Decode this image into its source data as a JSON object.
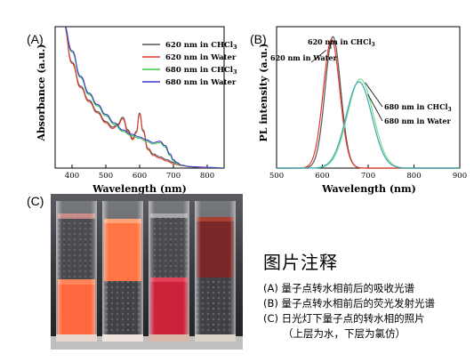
{
  "panels": {
    "a": "(A)",
    "b": "(B)",
    "c": "(C)"
  },
  "chart_data": [
    {
      "type": "line",
      "xlabel": "Wavelength (nm)",
      "ylabel": "Absorbance (a.u.)",
      "xlim": [
        350,
        850
      ],
      "ylim": [
        0,
        1.0
      ],
      "xticks": [
        400,
        500,
        600,
        700,
        800
      ],
      "grid": false,
      "legend_position": "top-right",
      "series": [
        {
          "name": "620 nm in CHCl3",
          "name_main": "620 nm in CHCl",
          "name_sub": "3",
          "color": "#555555",
          "x": [
            375,
            400,
            425,
            450,
            475,
            500,
            520,
            535,
            550,
            565,
            580,
            590,
            600,
            610,
            625,
            640,
            660,
            680,
            700,
            720,
            750,
            800,
            850
          ],
          "y": [
            1.02,
            0.75,
            0.58,
            0.48,
            0.4,
            0.33,
            0.29,
            0.31,
            0.36,
            0.27,
            0.21,
            0.26,
            0.39,
            0.27,
            0.14,
            0.1,
            0.08,
            0.06,
            0.04,
            0.02,
            0.01,
            0.0,
            0.0
          ]
        },
        {
          "name": "620 nm in Water",
          "name_main": "620 nm in Water",
          "name_sub": "",
          "color": "#e23a2a",
          "x": [
            375,
            400,
            425,
            450,
            475,
            500,
            520,
            535,
            550,
            565,
            580,
            590,
            600,
            610,
            625,
            640,
            660,
            680,
            700,
            720,
            750,
            800,
            850
          ],
          "y": [
            1.02,
            0.74,
            0.57,
            0.47,
            0.39,
            0.32,
            0.28,
            0.3,
            0.35,
            0.26,
            0.2,
            0.25,
            0.38,
            0.26,
            0.13,
            0.09,
            0.07,
            0.05,
            0.03,
            0.02,
            0.01,
            0.0,
            0.0
          ]
        },
        {
          "name": "680 nm in CHCl3",
          "name_main": "680 nm in CHCl",
          "name_sub": "3",
          "color": "#3cc94a",
          "x": [
            375,
            400,
            425,
            450,
            475,
            500,
            525,
            550,
            575,
            600,
            620,
            640,
            660,
            675,
            690,
            700,
            710,
            725,
            750,
            800,
            850
          ],
          "y": [
            1.02,
            0.82,
            0.64,
            0.52,
            0.44,
            0.37,
            0.31,
            0.26,
            0.23,
            0.21,
            0.19,
            0.17,
            0.18,
            0.15,
            0.09,
            0.05,
            0.03,
            0.02,
            0.01,
            0.005,
            0.0
          ]
        },
        {
          "name": "680 nm in Water",
          "name_main": "680 nm in Water",
          "name_sub": "",
          "color": "#3a3ad0",
          "x": [
            375,
            400,
            425,
            450,
            475,
            500,
            525,
            550,
            575,
            600,
            620,
            640,
            660,
            675,
            690,
            700,
            710,
            725,
            750,
            800,
            850
          ],
          "y": [
            1.02,
            0.83,
            0.65,
            0.53,
            0.45,
            0.38,
            0.32,
            0.27,
            0.24,
            0.22,
            0.2,
            0.18,
            0.19,
            0.16,
            0.1,
            0.06,
            0.04,
            0.02,
            0.01,
            0.005,
            0.0
          ]
        }
      ]
    },
    {
      "type": "line",
      "xlabel": "Wavelength (nm)",
      "ylabel": "PL intensity (a.u.)",
      "xlim": [
        500,
        900
      ],
      "ylim": [
        0,
        1.0
      ],
      "xticks": [
        500,
        600,
        700,
        800,
        900
      ],
      "grid": false,
      "annotations": [
        {
          "text_main": "620 nm in CHCl",
          "text_sub": "3",
          "target": 0
        },
        {
          "text_main": "620 nm in Water",
          "text_sub": "",
          "target": 1
        },
        {
          "text_main": "680 nm in CHCl",
          "text_sub": "3",
          "target": 2
        },
        {
          "text_main": "680 nm in Water",
          "text_sub": "",
          "target": 3
        }
      ],
      "series": [
        {
          "name": "620 nm in CHCl3",
          "color": "#555555",
          "center": 623,
          "sigma": 17,
          "peak": 0.93
        },
        {
          "name": "620 nm in Water",
          "color": "#e23a2a",
          "center": 620,
          "sigma": 18,
          "peak": 0.91
        },
        {
          "name": "680 nm in CHCl3",
          "color": "#7ce08a",
          "center": 683,
          "sigma": 28,
          "peak": 0.63
        },
        {
          "name": "680 nm in Water",
          "color": "#3aa6b8",
          "center": 680,
          "sigma": 28,
          "peak": 0.61
        }
      ]
    }
  ],
  "caption": {
    "title": "图片注释",
    "lines": [
      "(A) 量子点转水相前后的吸收光谱",
      "(B) 量子点转水相前后的荧光发射光谱",
      "(C) 日光灯下量子点的转水相的照片",
      "（上层为水，下层为氯仿）"
    ]
  }
}
